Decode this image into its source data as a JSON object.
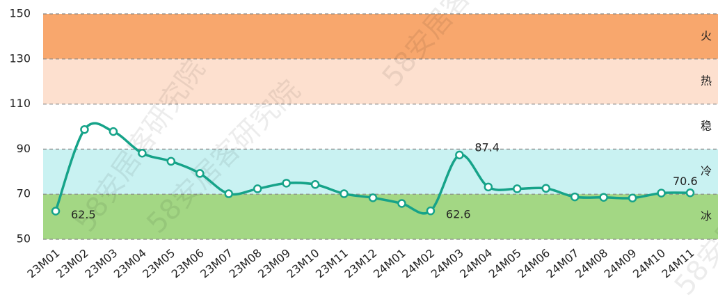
{
  "chart_data": {
    "type": "line",
    "categories": [
      "23M01",
      "23M02",
      "23M03",
      "23M04",
      "23M05",
      "23M06",
      "23M07",
      "23M08",
      "23M09",
      "23M10",
      "23M11",
      "23M12",
      "24M01",
      "24M02",
      "24M03",
      "24M04",
      "24M05",
      "24M06",
      "24M07",
      "24M08",
      "24M09",
      "24M10",
      "24M11"
    ],
    "series": [
      {
        "color": "#16a389",
        "values": [
          62.5,
          98.7,
          97.8,
          88.2,
          84.6,
          79.2,
          70.2,
          72.4,
          74.9,
          74.3,
          70.2,
          68.4,
          65.9,
          62.6,
          87.4,
          73.2,
          72.4,
          72.6,
          68.8,
          68.6,
          68.3,
          70.5,
          70.6
        ]
      }
    ],
    "labeled_points": [
      0,
      13,
      14,
      22
    ],
    "ylim": [
      50,
      150
    ],
    "yticks": [
      50,
      70,
      90,
      110,
      130,
      150
    ],
    "grid": true,
    "bands": [
      {
        "from": 130,
        "to": 150,
        "label": "火",
        "color": "#f8a76d",
        "label_color": "#f07a1c"
      },
      {
        "from": 110,
        "to": 130,
        "label": "热",
        "color": "#fde0cf",
        "label_color": "#f5b98e"
      },
      {
        "from": 90,
        "to": 110,
        "label": "稳",
        "color": "#ffffff",
        "label_color": "#444444"
      },
      {
        "from": 70,
        "to": 90,
        "label": "冷",
        "color": "#c9f2f2",
        "label_color": "#3a9a2a"
      },
      {
        "from": 50,
        "to": 70,
        "label": "冰",
        "color": "#a3d784",
        "label_color": "#2e6b1a"
      }
    ],
    "watermark": "58安居客研究院"
  }
}
